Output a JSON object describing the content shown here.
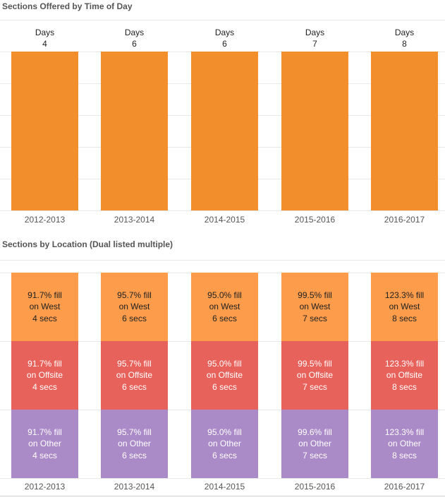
{
  "chart_data": [
    {
      "type": "bar",
      "title": "Sections Offered by Time of Day",
      "categories": [
        "2012-2013",
        "2013-2014",
        "2014-2015",
        "2015-2016",
        "2016-2017"
      ],
      "series": [
        {
          "name": "Days",
          "values": [
            4,
            6,
            6,
            7,
            8
          ]
        }
      ],
      "bar_label_prefix": "Days",
      "color": "#f28e2b",
      "grid": true
    },
    {
      "type": "bar",
      "stacked": true,
      "title": "Sections by Location (Dual listed multiple)",
      "categories": [
        "2012-2013",
        "2013-2014",
        "2014-2015",
        "2015-2016",
        "2016-2017"
      ],
      "series": [
        {
          "name": "West",
          "color": "#fd9c4b",
          "labels": [
            [
              "91.7% fill",
              "on West",
              "4 secs"
            ],
            [
              "95.7% fill",
              "on West",
              "6 secs"
            ],
            [
              "95.0% fill",
              "on West",
              "6 secs"
            ],
            [
              "99.5% fill",
              "on West",
              "7 secs"
            ],
            [
              "123.3% fill",
              "on West",
              "8 secs"
            ]
          ]
        },
        {
          "name": "Offsite",
          "color": "#e8625c",
          "labels": [
            [
              "91.7% fill",
              "on Offsite",
              "4 secs"
            ],
            [
              "95.7% fill",
              "on Offsite",
              "6 secs"
            ],
            [
              "95.0% fill",
              "on Offsite",
              "6 secs"
            ],
            [
              "99.5% fill",
              "on Offsite",
              "7 secs"
            ],
            [
              "123.3% fill",
              "on Offsite",
              "8 secs"
            ]
          ]
        },
        {
          "name": "Other",
          "color": "#ab8ac8",
          "labels": [
            [
              "91.7% fill",
              "on Other",
              "4 secs"
            ],
            [
              "95.7% fill",
              "on Other",
              "6 secs"
            ],
            [
              "95.0% fill",
              "on Other",
              "6 secs"
            ],
            [
              "99.6% fill",
              "on Other",
              "7 secs"
            ],
            [
              "123.3% fill",
              "on Other",
              "8 secs"
            ]
          ]
        }
      ],
      "grid": true
    }
  ]
}
